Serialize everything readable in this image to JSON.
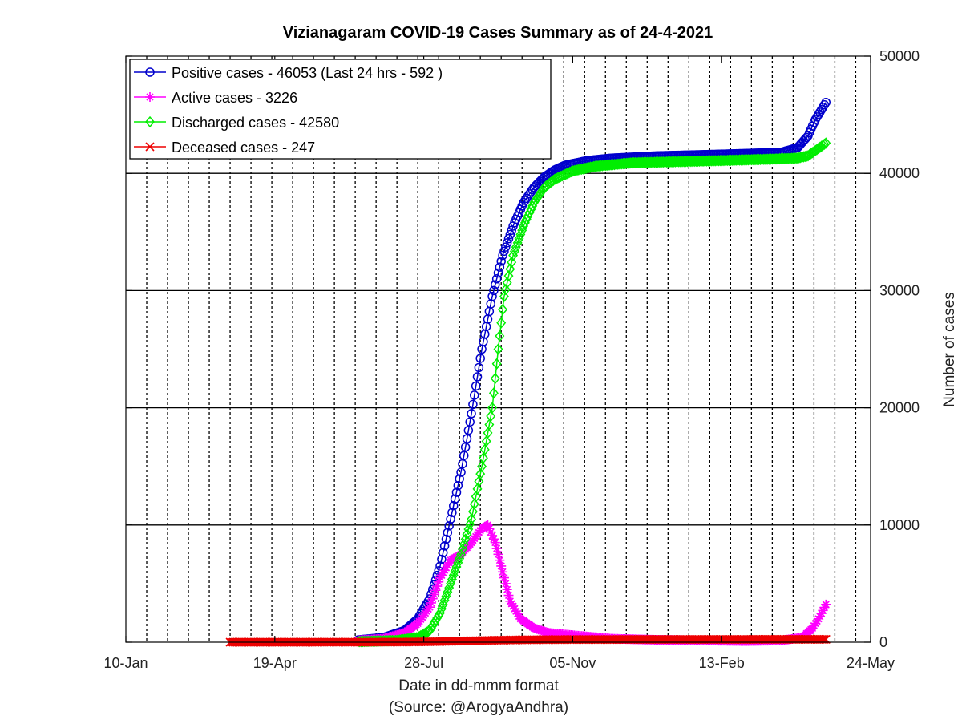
{
  "chart_data": {
    "type": "line",
    "title": "Vizianagaram COVID-19 Cases Summary as of 24-4-2021",
    "xlabel": "Date in dd-mmm format",
    "source": "(Source: @ArogyaAndhra)",
    "ylabel": "Number of cases",
    "xlim": [
      "2020-01-10",
      "2021-05-24"
    ],
    "ylim": [
      0,
      50000
    ],
    "y_axis_side": "right",
    "grid": {
      "x": "dotted-every-2-weeks",
      "y": "solid-major"
    },
    "x_ticks": [
      {
        "date": "2020-01-10",
        "label": "10-Jan"
      },
      {
        "date": "2020-04-19",
        "label": "19-Apr"
      },
      {
        "date": "2020-07-28",
        "label": "28-Jul"
      },
      {
        "date": "2020-11-05",
        "label": "05-Nov"
      },
      {
        "date": "2021-02-13",
        "label": "13-Feb"
      },
      {
        "date": "2021-05-24",
        "label": "24-May"
      }
    ],
    "y_ticks": [
      0,
      10000,
      20000,
      30000,
      40000,
      50000
    ],
    "legend_position": "top-left",
    "series": [
      {
        "name": "Positive cases - 46053 (Last 24 hrs - 592 )",
        "color": "#0000cc",
        "marker": "circle",
        "points": [
          [
            "2020-06-14",
            200
          ],
          [
            "2020-07-01",
            400
          ],
          [
            "2020-07-15",
            1000
          ],
          [
            "2020-07-24",
            2000
          ],
          [
            "2020-08-01",
            3700
          ],
          [
            "2020-08-08",
            6500
          ],
          [
            "2020-08-15",
            10500
          ],
          [
            "2020-08-22",
            14500
          ],
          [
            "2020-08-29",
            19500
          ],
          [
            "2020-09-05",
            25000
          ],
          [
            "2020-09-12",
            29500
          ],
          [
            "2020-09-19",
            33000
          ],
          [
            "2020-09-26",
            35500
          ],
          [
            "2020-10-03",
            37500
          ],
          [
            "2020-10-10",
            38800
          ],
          [
            "2020-10-17",
            39700
          ],
          [
            "2020-10-24",
            40300
          ],
          [
            "2020-10-31",
            40700
          ],
          [
            "2020-11-15",
            41100
          ],
          [
            "2020-12-01",
            41300
          ],
          [
            "2021-01-01",
            41500
          ],
          [
            "2021-02-01",
            41600
          ],
          [
            "2021-03-01",
            41700
          ],
          [
            "2021-03-25",
            41800
          ],
          [
            "2021-04-05",
            42200
          ],
          [
            "2021-04-12",
            43200
          ],
          [
            "2021-04-17",
            44600
          ],
          [
            "2021-04-24",
            46053
          ]
        ]
      },
      {
        "name": "Active cases - 3226",
        "color": "#ff00ff",
        "marker": "star",
        "points": [
          [
            "2020-06-14",
            150
          ],
          [
            "2020-07-01",
            300
          ],
          [
            "2020-07-15",
            800
          ],
          [
            "2020-07-24",
            1600
          ],
          [
            "2020-08-01",
            3000
          ],
          [
            "2020-08-08",
            5500
          ],
          [
            "2020-08-15",
            7000
          ],
          [
            "2020-08-22",
            7500
          ],
          [
            "2020-08-29",
            8500
          ],
          [
            "2020-09-05",
            9700
          ],
          [
            "2020-09-09",
            10000
          ],
          [
            "2020-09-14",
            8500
          ],
          [
            "2020-09-19",
            6000
          ],
          [
            "2020-09-24",
            3500
          ],
          [
            "2020-10-01",
            2000
          ],
          [
            "2020-10-10",
            1200
          ],
          [
            "2020-10-20",
            800
          ],
          [
            "2020-11-05",
            600
          ],
          [
            "2020-12-01",
            300
          ],
          [
            "2021-01-01",
            200
          ],
          [
            "2021-02-01",
            150
          ],
          [
            "2021-03-01",
            100
          ],
          [
            "2021-03-25",
            150
          ],
          [
            "2021-04-08",
            400
          ],
          [
            "2021-04-15",
            1200
          ],
          [
            "2021-04-20",
            2200
          ],
          [
            "2021-04-24",
            3226
          ]
        ]
      },
      {
        "name": "Discharged cases - 42580",
        "color": "#00ee00",
        "marker": "diamond",
        "points": [
          [
            "2020-06-14",
            50
          ],
          [
            "2020-07-10",
            150
          ],
          [
            "2020-07-24",
            400
          ],
          [
            "2020-08-01",
            1000
          ],
          [
            "2020-08-08",
            2500
          ],
          [
            "2020-08-15",
            5000
          ],
          [
            "2020-08-22",
            7500
          ],
          [
            "2020-08-29",
            10500
          ],
          [
            "2020-09-05",
            15000
          ],
          [
            "2020-09-12",
            20000
          ],
          [
            "2020-09-16",
            25000
          ],
          [
            "2020-09-20",
            29500
          ],
          [
            "2020-09-26",
            33000
          ],
          [
            "2020-10-03",
            35500
          ],
          [
            "2020-10-10",
            37500
          ],
          [
            "2020-10-17",
            38800
          ],
          [
            "2020-10-24",
            39500
          ],
          [
            "2020-11-05",
            40200
          ],
          [
            "2020-11-20",
            40600
          ],
          [
            "2020-12-15",
            40900
          ],
          [
            "2021-01-15",
            41000
          ],
          [
            "2021-02-15",
            41100
          ],
          [
            "2021-03-15",
            41200
          ],
          [
            "2021-04-05",
            41300
          ],
          [
            "2021-04-12",
            41500
          ],
          [
            "2021-04-24",
            42580
          ]
        ]
      },
      {
        "name": "Deceased cases - 247",
        "color": "#ee0000",
        "marker": "x",
        "points": [
          [
            "2020-03-20",
            0
          ],
          [
            "2020-05-15",
            0
          ],
          [
            "2020-06-14",
            5
          ],
          [
            "2020-07-15",
            15
          ],
          [
            "2020-08-01",
            40
          ],
          [
            "2020-08-15",
            80
          ],
          [
            "2020-09-01",
            130
          ],
          [
            "2020-09-15",
            170
          ],
          [
            "2020-10-01",
            200
          ],
          [
            "2020-10-15",
            215
          ],
          [
            "2020-11-05",
            225
          ],
          [
            "2020-12-15",
            233
          ],
          [
            "2021-02-01",
            237
          ],
          [
            "2021-03-15",
            240
          ],
          [
            "2021-04-24",
            247
          ]
        ]
      }
    ]
  }
}
